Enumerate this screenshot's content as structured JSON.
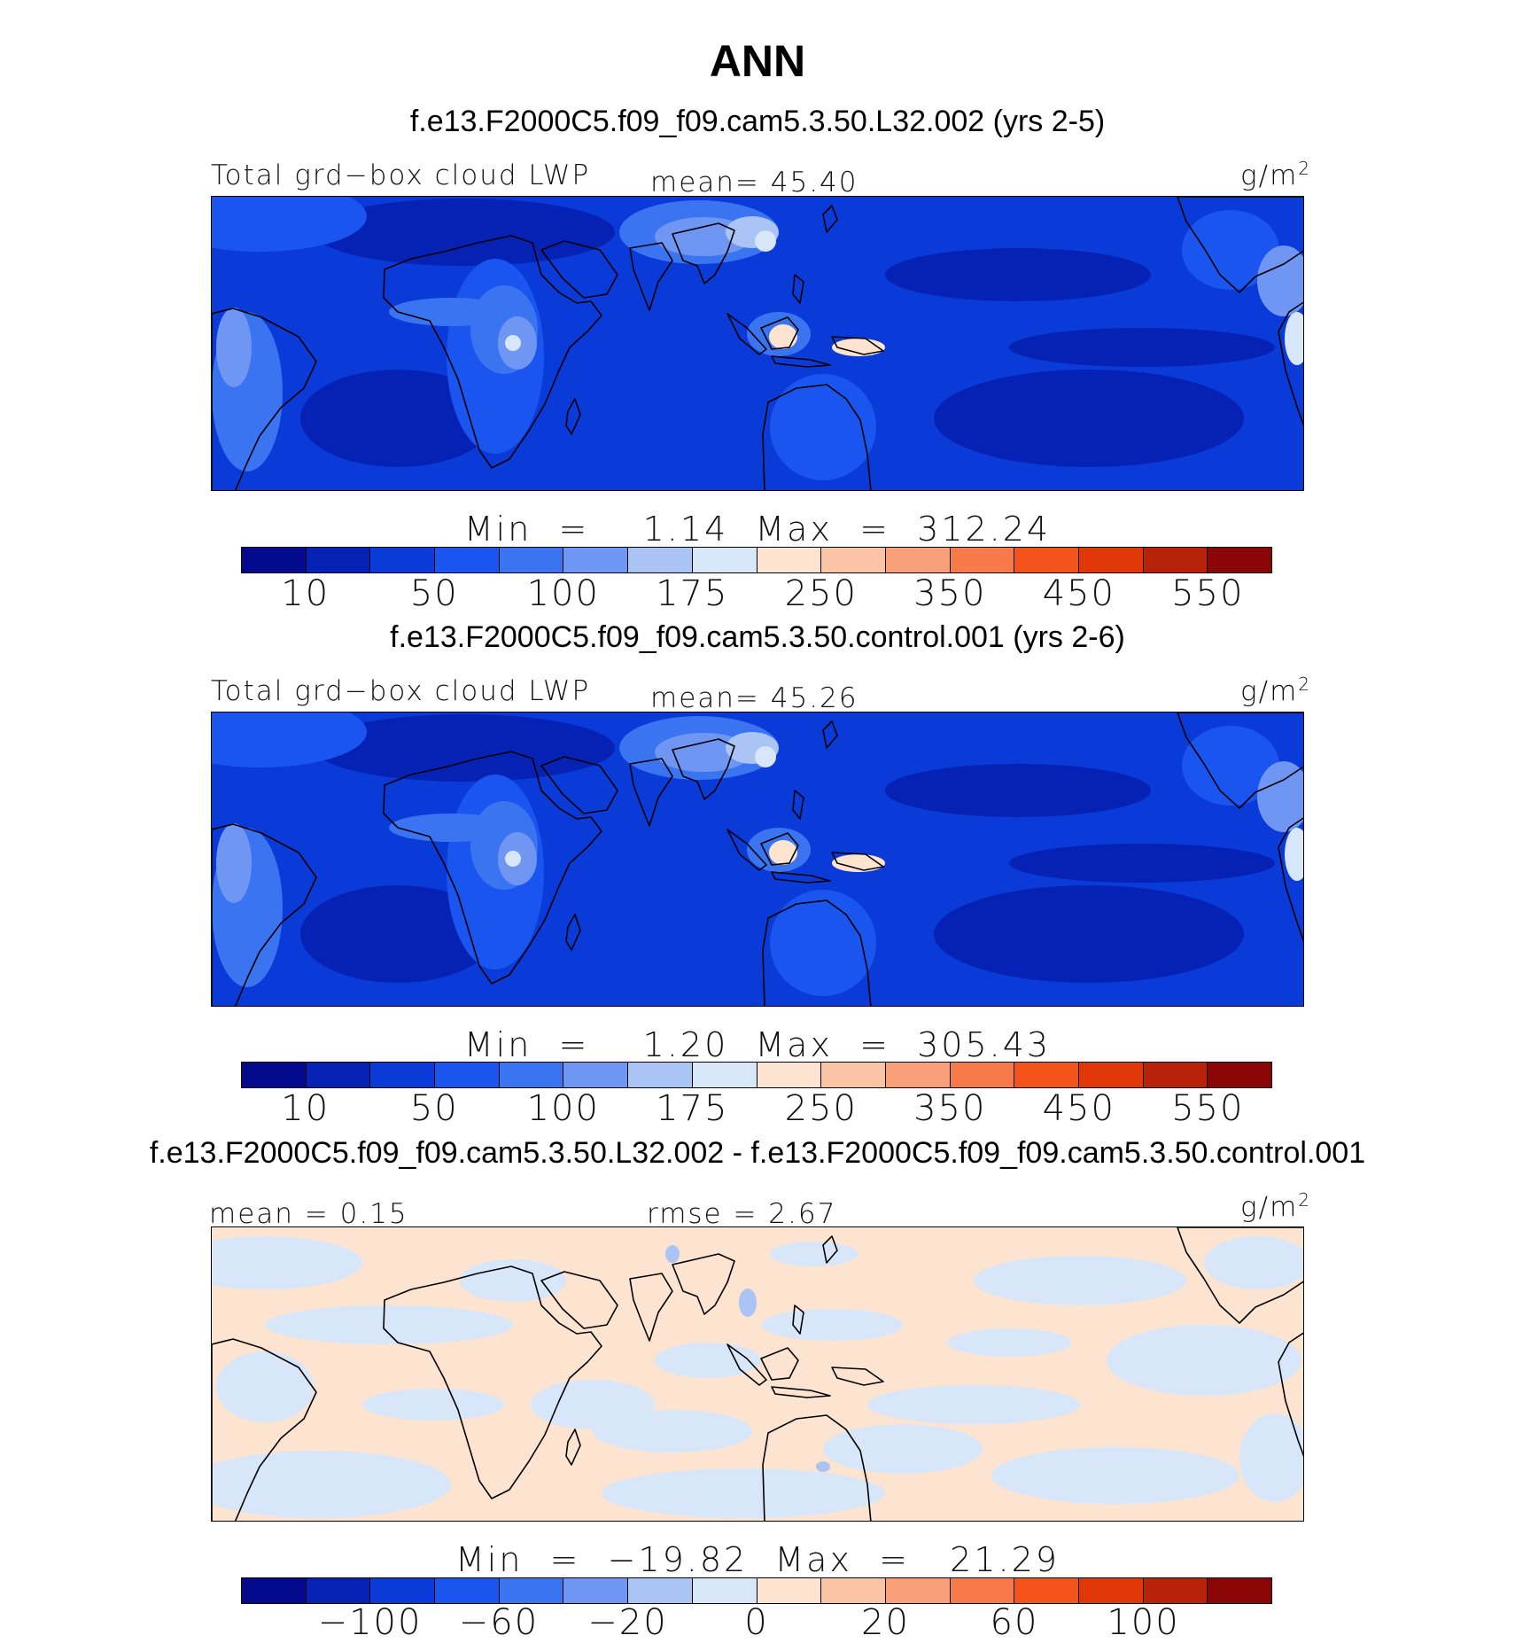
{
  "title": "ANN",
  "panels": [
    {
      "case_title": "f.e13.F2000C5.f09_f09.cam5.3.50.L32.002 (yrs 2-5)",
      "left_label": "Total grd−box cloud LWP",
      "center_label": "mean=  45.40",
      "units_base": "g/m",
      "units_exp": "2",
      "min_max": "Min  =    1.14  Max  =  312.24",
      "field_type": "lwp"
    },
    {
      "case_title": "f.e13.F2000C5.f09_f09.cam5.3.50.control.001 (yrs 2-6)",
      "left_label": "Total grd−box cloud LWP",
      "center_label": "mean=  45.26",
      "units_base": "g/m",
      "units_exp": "2",
      "min_max": "Min  =    1.20  Max  =  305.43",
      "field_type": "lwp"
    },
    {
      "case_title": "f.e13.F2000C5.f09_f09.cam5.3.50.L32.002 - f.e13.F2000C5.f09_f09.cam5.3.50.control.001",
      "left_label": "mean  =    0.15",
      "center_label": "rmse  =    2.67",
      "units_base": "g/m",
      "units_exp": "2",
      "min_max": "Min  =  −19.82  Max  =   21.29",
      "field_type": "diff"
    }
  ],
  "colorbar": {
    "colors": [
      "#040a8e",
      "#0622b4",
      "#0a3ad8",
      "#1a55f0",
      "#3a74f0",
      "#6e96f2",
      "#aac4f6",
      "#d8e6fa",
      "#fde4d0",
      "#fbc4a4",
      "#f9a07a",
      "#f77a4a",
      "#f4531a",
      "#e03808",
      "#b82208",
      "#8a0606"
    ],
    "lwp_ticks": [
      {
        "label": "10",
        "boundary": 1
      },
      {
        "label": "50",
        "boundary": 3
      },
      {
        "label": "100",
        "boundary": 5
      },
      {
        "label": "175",
        "boundary": 7
      },
      {
        "label": "250",
        "boundary": 9
      },
      {
        "label": "350",
        "boundary": 11
      },
      {
        "label": "450",
        "boundary": 13
      },
      {
        "label": "550",
        "boundary": 15
      }
    ],
    "diff_ticks": [
      {
        "label": "−100",
        "boundary": 2
      },
      {
        "label": "−60",
        "boundary": 4
      },
      {
        "label": "−20",
        "boundary": 6
      },
      {
        "label": "0",
        "boundary": 8
      },
      {
        "label": "20",
        "boundary": 10
      },
      {
        "label": "60",
        "boundary": 12
      },
      {
        "label": "100",
        "boundary": 14
      }
    ]
  }
}
